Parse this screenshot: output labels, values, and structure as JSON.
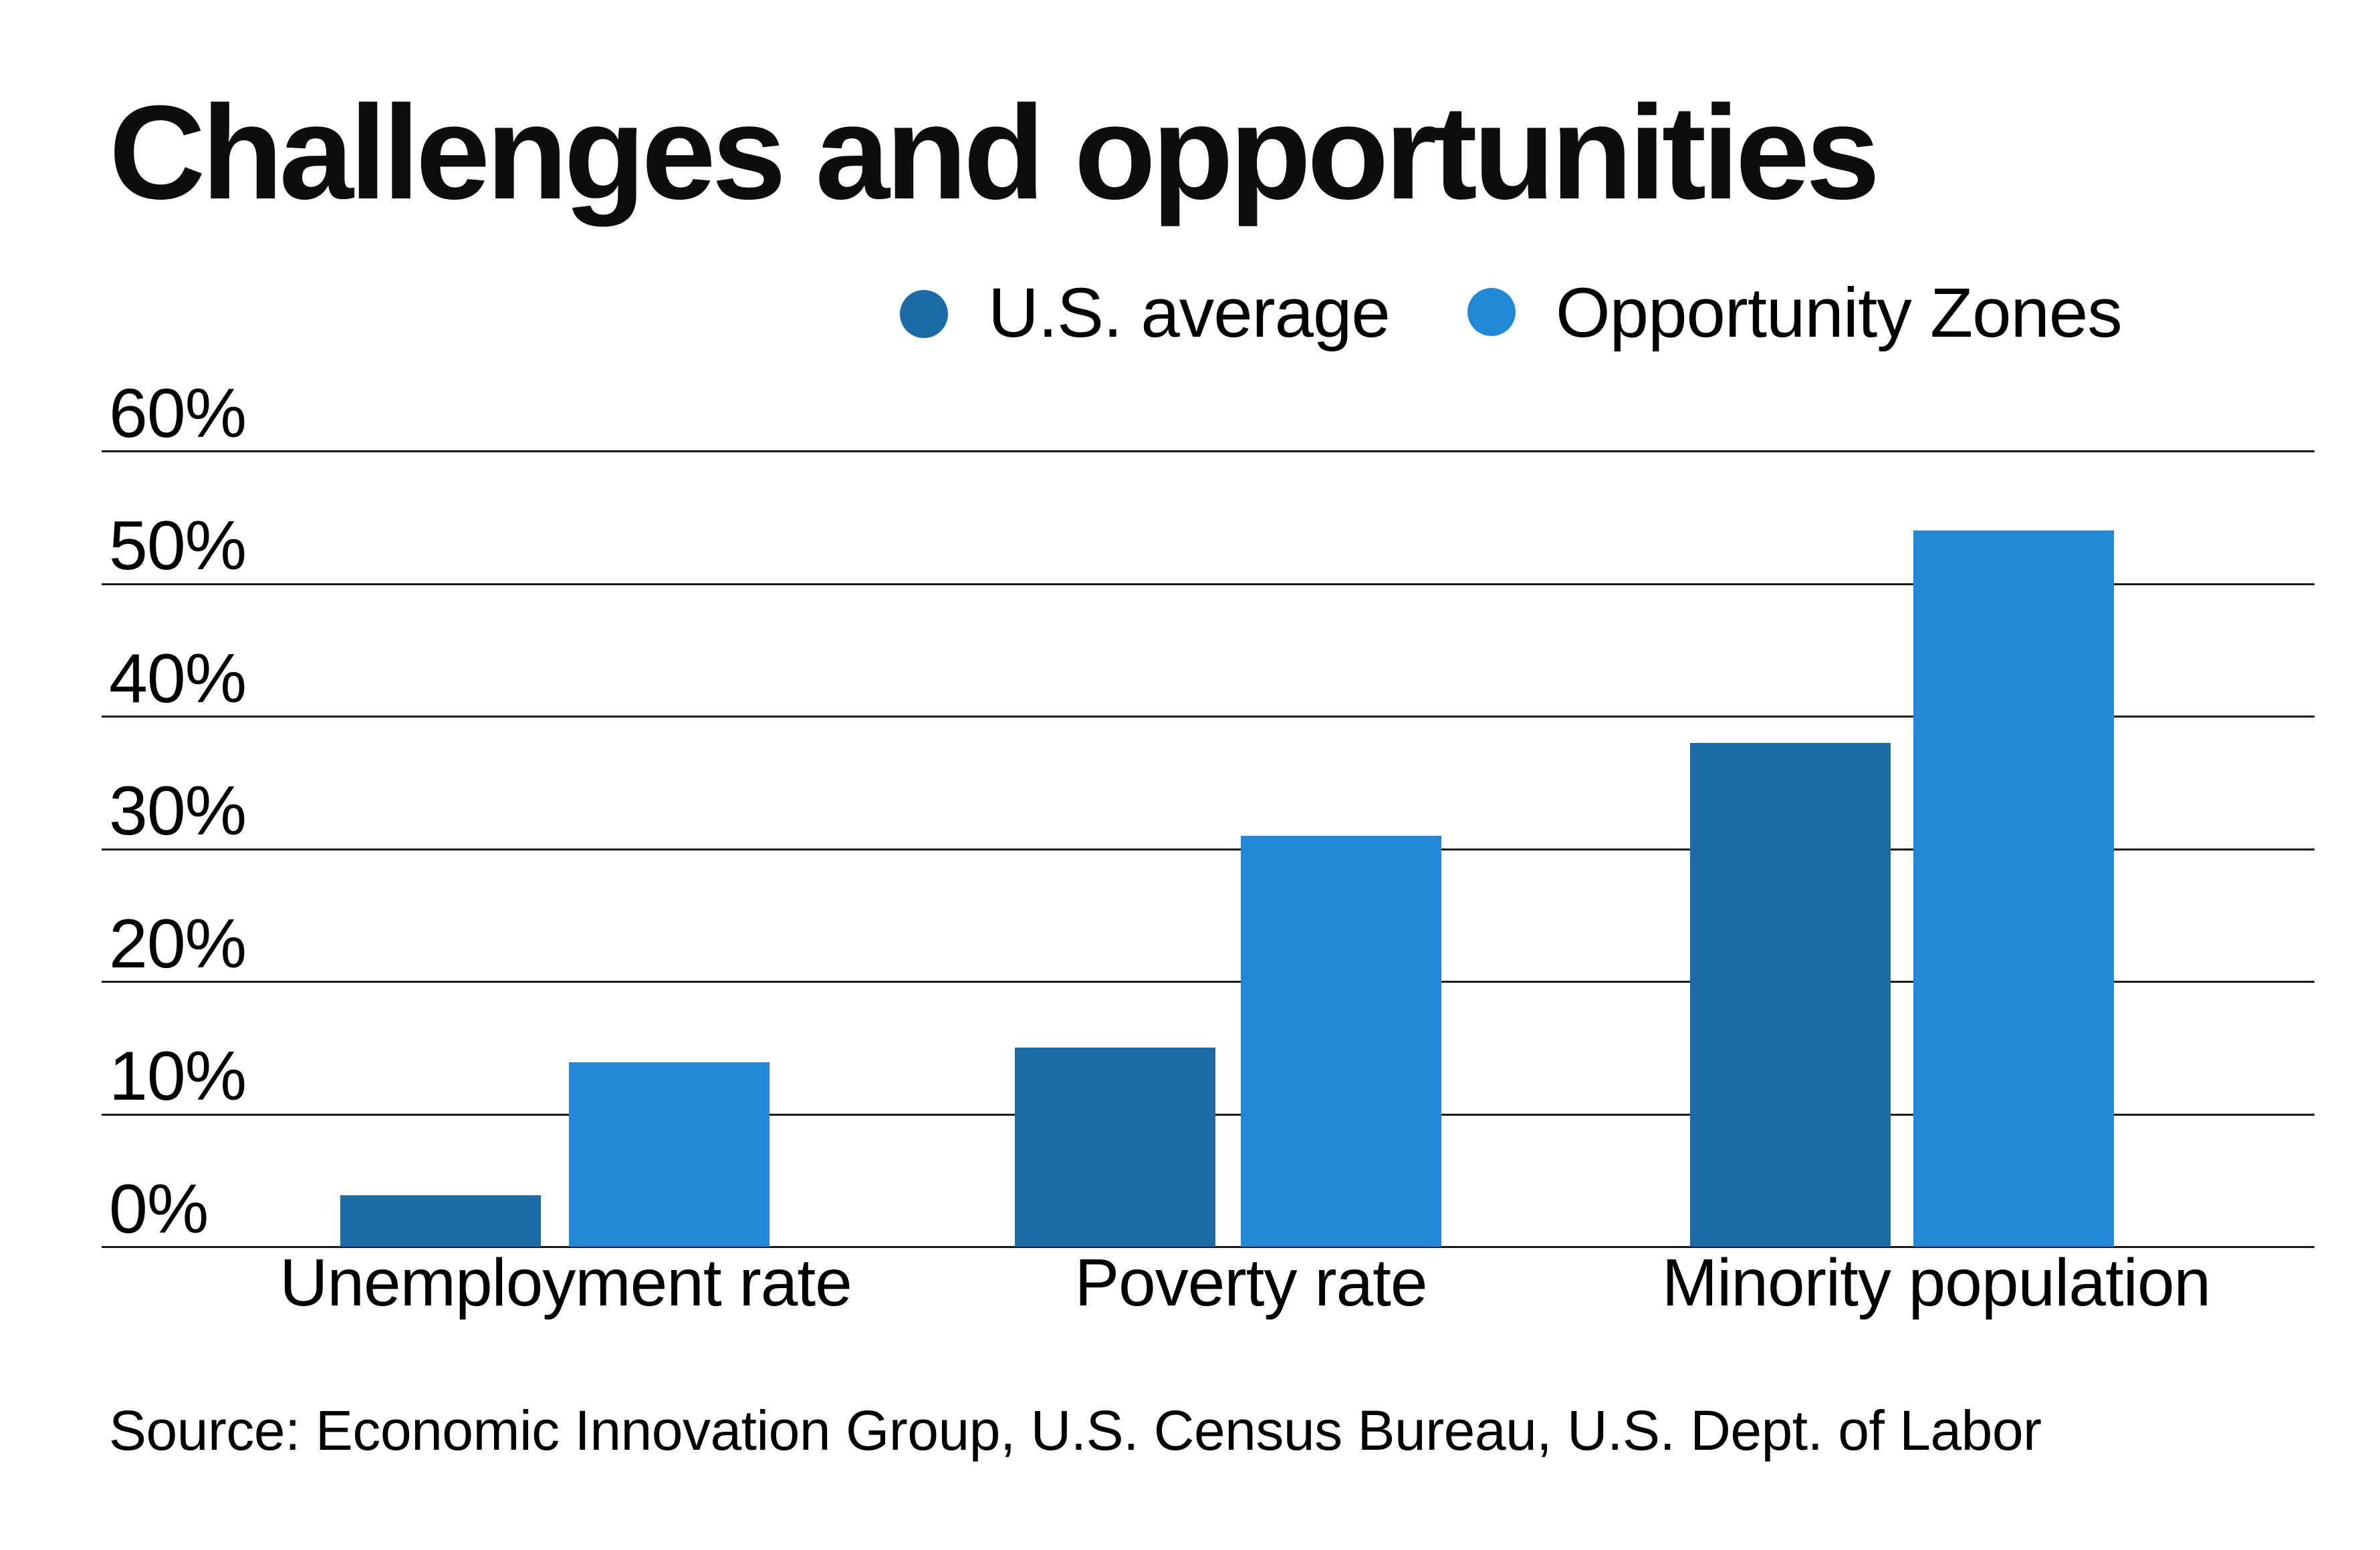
{
  "title": "Challenges and opportunities",
  "source": "Source: Economic Innovation Group, U.S. Census Bureau, U.S. Dept. of Labor",
  "colors": {
    "us_average": "#1d6ba6",
    "opportunity_zones": "#2289d8",
    "grid": "#1a1a1a",
    "text": "#000000",
    "background": "#ffffff"
  },
  "chart_data": {
    "type": "bar",
    "title": "Challenges and opportunities",
    "categories": [
      "Unemployment rate",
      "Poverty rate",
      "Minority population"
    ],
    "series": [
      {
        "name": "U.S. average",
        "color": "#1d6ba6",
        "values": [
          3.9,
          15,
          38
        ]
      },
      {
        "name": "Opportunity Zones",
        "color": "#2289d8",
        "values": [
          13.9,
          31,
          54
        ]
      }
    ],
    "xlabel": "",
    "ylabel": "",
    "ylim": [
      0,
      60
    ],
    "y_tick_values": [
      0,
      10,
      20,
      30,
      40,
      50,
      60
    ],
    "y_tick_labels": [
      "0%",
      "10%",
      "20%",
      "30%",
      "40%",
      "50%",
      "60%"
    ],
    "grid": true,
    "legend_position": "top-center",
    "value_unit": "percent"
  }
}
